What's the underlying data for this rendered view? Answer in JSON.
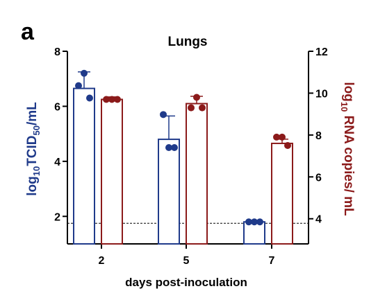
{
  "chart_data": {
    "type": "bar",
    "panel_label": "a",
    "title": "Lungs",
    "xlabel": "days post-inoculation",
    "categories": [
      "2",
      "5",
      "7"
    ],
    "y_left": {
      "label_parts": [
        "log",
        "10",
        "TCID",
        "50",
        "/mL"
      ],
      "color": "#1f3a8a",
      "ylim": [
        1,
        8
      ],
      "ticks": [
        2,
        4,
        6,
        8
      ]
    },
    "y_right": {
      "label_parts": [
        "log",
        "10",
        " RNA copies/ mL"
      ],
      "color": "#8b1a1a",
      "ylim": [
        2.8,
        12
      ],
      "ticks": [
        4,
        6,
        8,
        10,
        12
      ]
    },
    "series": [
      {
        "axis": "left",
        "values": [
          6.65,
          4.8,
          1.8
        ],
        "error": [
          0.6,
          0.85,
          0
        ],
        "points": [
          [
            6.75,
            7.2,
            6.3
          ],
          [
            5.7,
            4.5,
            4.5
          ],
          [
            1.8,
            1.8,
            1.8
          ]
        ]
      },
      {
        "axis": "right",
        "values": [
          9.7,
          9.5,
          7.6
        ],
        "error": [
          0.12,
          0.35,
          0.2
        ],
        "points": [
          [
            9.7,
            9.7,
            9.7
          ],
          [
            9.3,
            9.8,
            9.3
          ],
          [
            7.9,
            7.9,
            7.5
          ]
        ]
      }
    ],
    "limit_of_detection": 1.75,
    "limit_axis": "left"
  }
}
